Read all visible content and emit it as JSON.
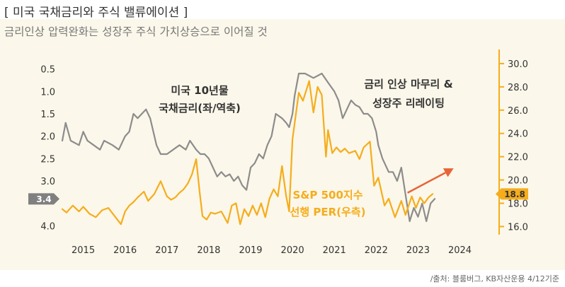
{
  "header": {
    "title": "[ 미국 국채금리와 주식 밸류에이션 ]",
    "subtitle": "금리인상 압력완화는 성장주 주식 가치상승으로 이어질 것"
  },
  "footer": {
    "source": "/출처: 블룸버그, KB자산운용 4/12기준"
  },
  "colors": {
    "panel_bg": "#fbf7ea",
    "yield_line": "#8c8c8c",
    "per_line": "#f5ad1c",
    "right_axis": "#f5ad1c",
    "arrow": "#e8643a",
    "left_marker": "#808080",
    "right_marker": "#f5ad1c",
    "text": "#333333"
  },
  "chart_data": {
    "type": "line",
    "title": "미국 국채금리와 주식 밸류에이션",
    "x_ticks": [
      "2015",
      "2016",
      "2017",
      "2018",
      "2019",
      "2020",
      "2021",
      "2022",
      "2023",
      "2024"
    ],
    "xlim": [
      2014.5,
      2024.6
    ],
    "left_axis": {
      "label": "미국 10년물 국채금리(좌/역축)",
      "inverted": true,
      "ylim": [
        0.3,
        4.2
      ],
      "ticks": [
        "0.5",
        "1.0",
        "1.5",
        "2.0",
        "2.5",
        "3.0",
        "4.0"
      ],
      "marker_value": "3.4"
    },
    "right_axis": {
      "label": "S&P 500지수 선행 PER(우측)",
      "ylim": [
        15.3,
        30.3
      ],
      "ticks": [
        "30.0",
        "28.0",
        "26.0",
        "24.0",
        "22.0",
        "20.0",
        "18.0",
        "16.0"
      ],
      "marker_value": "18.8"
    },
    "annotations": {
      "yield_label_1": "미국 10년물",
      "yield_label_2": "국채금리(좌/역축)",
      "per_label_1": "S&P 500지수",
      "per_label_2": "선행 PER(우측)",
      "note_1": "금리 인상 마무리 &",
      "note_2": "성장주 리레이팅"
    },
    "series": [
      {
        "name": "미국 10년물 국채금리(좌/역축)",
        "axis": "left",
        "x": [
          2014.5,
          2014.58,
          2014.7,
          2014.9,
          2015.0,
          2015.1,
          2015.25,
          2015.4,
          2015.5,
          2015.7,
          2015.85,
          2016.0,
          2016.1,
          2016.2,
          2016.3,
          2016.4,
          2016.5,
          2016.6,
          2016.75,
          2016.85,
          2017.0,
          2017.15,
          2017.3,
          2017.45,
          2017.55,
          2017.7,
          2017.8,
          2017.9,
          2018.0,
          2018.1,
          2018.2,
          2018.3,
          2018.4,
          2018.5,
          2018.6,
          2018.7,
          2018.8,
          2018.9,
          2019.0,
          2019.1,
          2019.2,
          2019.3,
          2019.4,
          2019.5,
          2019.6,
          2019.75,
          2019.85,
          2019.92,
          2020.0,
          2020.05,
          2020.15,
          2020.3,
          2020.5,
          2020.7,
          2020.85,
          2021.0,
          2021.1,
          2021.2,
          2021.3,
          2021.4,
          2021.5,
          2021.6,
          2021.7,
          2021.8,
          2021.9,
          2022.0,
          2022.05,
          2022.15,
          2022.3,
          2022.4,
          2022.5,
          2022.6,
          2022.7,
          2022.8,
          2022.9,
          2023.0,
          2023.1,
          2023.2,
          2023.3,
          2023.4
        ],
        "values": [
          2.1,
          1.7,
          2.1,
          2.2,
          1.9,
          2.1,
          2.2,
          2.3,
          2.1,
          2.2,
          2.3,
          2.0,
          1.9,
          1.5,
          1.6,
          1.5,
          1.4,
          1.6,
          2.2,
          2.4,
          2.4,
          2.3,
          2.2,
          2.3,
          2.1,
          2.3,
          2.4,
          2.4,
          2.5,
          2.7,
          2.9,
          2.8,
          2.9,
          2.85,
          3.0,
          2.9,
          3.1,
          3.2,
          2.7,
          2.6,
          2.4,
          2.5,
          2.2,
          2.0,
          1.5,
          1.6,
          1.7,
          1.8,
          1.5,
          1.1,
          0.6,
          0.6,
          0.7,
          0.6,
          0.8,
          1.0,
          1.2,
          1.6,
          1.4,
          1.2,
          1.3,
          1.35,
          1.5,
          1.5,
          1.6,
          1.9,
          2.2,
          2.5,
          2.8,
          2.8,
          3.0,
          2.7,
          3.3,
          3.9,
          3.6,
          3.8,
          3.5,
          3.9,
          3.5,
          3.4
        ]
      },
      {
        "name": "S&P 500지수 선행 PER(우측)",
        "axis": "right",
        "x": [
          2014.5,
          2014.6,
          2014.75,
          2014.9,
          2015.0,
          2015.15,
          2015.3,
          2015.45,
          2015.6,
          2015.75,
          2015.9,
          2016.0,
          2016.1,
          2016.2,
          2016.3,
          2016.45,
          2016.55,
          2016.7,
          2016.85,
          2017.0,
          2017.1,
          2017.2,
          2017.3,
          2017.4,
          2017.5,
          2017.6,
          2017.7,
          2017.78,
          2017.85,
          2017.95,
          2018.05,
          2018.15,
          2018.3,
          2018.45,
          2018.55,
          2018.65,
          2018.75,
          2018.85,
          2018.95,
          2019.05,
          2019.15,
          2019.25,
          2019.35,
          2019.45,
          2019.55,
          2019.65,
          2019.75,
          2019.85,
          2019.92,
          2020.0,
          2020.15,
          2020.25,
          2020.4,
          2020.5,
          2020.6,
          2020.7,
          2020.8,
          2020.85,
          2020.95,
          2021.05,
          2021.15,
          2021.25,
          2021.35,
          2021.5,
          2021.6,
          2021.7,
          2021.85,
          2021.95,
          2022.05,
          2022.2,
          2022.3,
          2022.45,
          2022.6,
          2022.7,
          2022.85,
          2022.95,
          2023.05,
          2023.15,
          2023.25,
          2023.35
        ],
        "values": [
          17.5,
          17.2,
          17.8,
          17.3,
          17.7,
          17.1,
          16.8,
          17.4,
          17.6,
          16.9,
          16.2,
          17.3,
          17.8,
          18.1,
          18.5,
          19.0,
          18.2,
          18.8,
          19.9,
          18.6,
          18.3,
          18.5,
          18.9,
          19.2,
          19.7,
          20.5,
          21.8,
          19.0,
          16.9,
          16.6,
          17.2,
          17.1,
          17.3,
          16.3,
          17.8,
          18.0,
          16.2,
          17.5,
          16.9,
          17.8,
          17.0,
          18.0,
          16.8,
          18.4,
          19.2,
          18.6,
          21.2,
          18.6,
          17.3,
          23.5,
          27.5,
          26.8,
          28.5,
          25.8,
          28.0,
          27.3,
          22.0,
          24.3,
          22.3,
          22.8,
          22.4,
          22.7,
          22.3,
          22.5,
          21.8,
          22.8,
          23.3,
          19.5,
          20.2,
          17.8,
          18.4,
          16.8,
          18.2,
          17.0,
          18.6,
          17.6,
          18.5,
          18.0,
          18.5,
          18.8
        ]
      }
    ],
    "arrow": {
      "from": [
        2022.75,
        18.9
      ],
      "to": [
        2023.85,
        21.0
      ]
    }
  }
}
